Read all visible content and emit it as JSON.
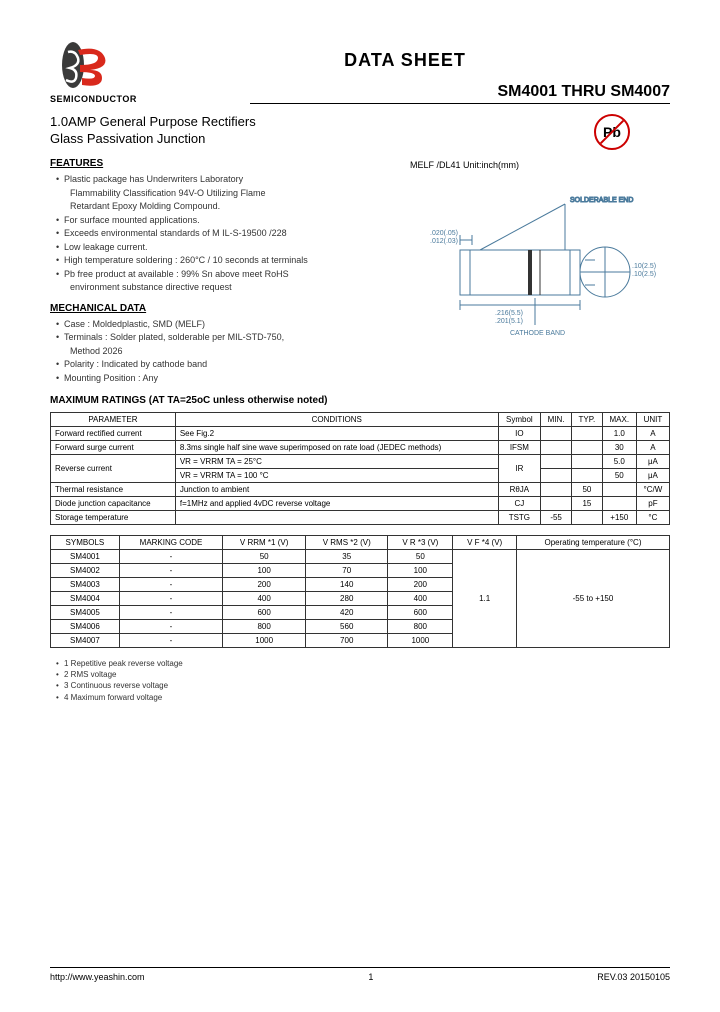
{
  "logo": {
    "brand": "SEMICONDUCTOR"
  },
  "header": {
    "doc_title": "DATA  SHEET",
    "part_range": "SM4001 THRU SM4007"
  },
  "subtitle": {
    "line1": "1.0AMP General Purpose Rectifiers",
    "line2": "Glass Passivation Junction"
  },
  "pb_badge": "Pb",
  "package": {
    "label": "MELF  /DL41     Unit:inch(mm)",
    "dim1": ".020(.05)",
    "dim2": ".012(.03)",
    "dim3": ".10(2.5)",
    "dim4": ".10(2.5)",
    "dim5": ".216(5.5)",
    "dim6": ".201(5.1)",
    "cathode": "CATHODE BAND",
    "solderable": "SOLDERABLE END"
  },
  "features": {
    "title": "FEATURES",
    "items": [
      "Plastic package has Underwriters Laboratory",
      "Flammability Classification 94V-O Utilizing Flame",
      "Retardant Epoxy Molding Compound.",
      "For surface mounted applications.",
      "Exceeds environmental standards of M IL-S-19500 /228",
      "Low leakage current.",
      "High temperature soldering : 260°C / 10 seconds at terminals",
      "Pb free product at available : 99% Sn above meet RoHS",
      "environment substance directive request"
    ],
    "bullets": [
      0,
      3,
      4,
      5,
      6,
      7
    ]
  },
  "mechanical": {
    "title": "MECHANICAL DATA",
    "items": [
      "Case : Moldedplastic, SMD (MELF)",
      "Terminals : Solder plated, solderable per MIL-STD-750,",
      "Method 2026",
      "Polarity : Indicated by cathode band",
      "Mounting Position : Any"
    ],
    "bullets": [
      0,
      1,
      3,
      4
    ]
  },
  "ratings": {
    "title": "MAXIMUM RATINGS (AT TA=25oC unless otherwise noted)",
    "columns": [
      "PARAMETER",
      "CONDITIONS",
      "Symbol",
      "MIN.",
      "TYP.",
      "MAX.",
      "UNIT"
    ],
    "rows": [
      {
        "p": "Forward rectified current",
        "c": "See Fig.2",
        "s": "IO",
        "min": "",
        "typ": "",
        "max": "1.0",
        "u": "A"
      },
      {
        "p": "Forward surge current",
        "c": "8.3ms single half sine wave superimposed on rate load (JEDEC methods)",
        "s": "IFSM",
        "min": "",
        "typ": "",
        "max": "30",
        "u": "A"
      },
      {
        "p": "Reverse current",
        "c": "VR = VRRM TA = 25°C",
        "s": "IR",
        "min": "",
        "typ": "",
        "max": "5.0",
        "u": "μA",
        "rowspan": true
      },
      {
        "p": "",
        "c": "VR = VRRM TA = 100 °C",
        "s": "",
        "min": "",
        "typ": "",
        "max": "50",
        "u": "μA"
      },
      {
        "p": "Thermal resistance",
        "c": "Junction to ambient",
        "s": "RθJA",
        "min": "",
        "typ": "50",
        "max": "",
        "u": "°C/W"
      },
      {
        "p": "Diode junction capacitance",
        "c": "f=1MHz and applied 4vDC reverse voltage",
        "s": "CJ",
        "min": "",
        "typ": "15",
        "max": "",
        "u": "pF"
      },
      {
        "p": "Storage temperature",
        "c": "",
        "s": "TSTG",
        "min": "-55",
        "typ": "",
        "max": "+150",
        "u": "°C"
      }
    ]
  },
  "parts_table": {
    "columns": [
      "SYMBOLS",
      "MARKING CODE",
      "V RRM *1 (V)",
      "V RMS *2 (V)",
      "V R *3 (V)",
      "V F *4 (V)",
      "Operating temperature (°C)"
    ],
    "rows": [
      [
        "SM4001",
        "-",
        "50",
        "35",
        "50"
      ],
      [
        "SM4002",
        "-",
        "100",
        "70",
        "100"
      ],
      [
        "SM4003",
        "-",
        "200",
        "140",
        "200"
      ],
      [
        "SM4004",
        "-",
        "400",
        "280",
        "400"
      ],
      [
        "SM4005",
        "-",
        "600",
        "420",
        "600"
      ],
      [
        "SM4006",
        "-",
        "800",
        "560",
        "800"
      ],
      [
        "SM4007",
        "-",
        "1000",
        "700",
        "1000"
      ]
    ],
    "vf": "1.1",
    "temp": "-55 to +150"
  },
  "footnotes": [
    "1 Repetitive peak reverse voltage",
    "2 RMS voltage",
    "3 Continuous reverse voltage",
    "4 Maximum forward voltage"
  ],
  "footer": {
    "url": "http://www.yeashin.com",
    "page": "1",
    "rev": "REV.03 20150105"
  },
  "colors": {
    "logo_red": "#d9291c",
    "logo_white": "#ffffff",
    "logo_black": "#000000",
    "diagram_line": "#4a7a9c",
    "logo_oval": "#3a3a3a"
  }
}
